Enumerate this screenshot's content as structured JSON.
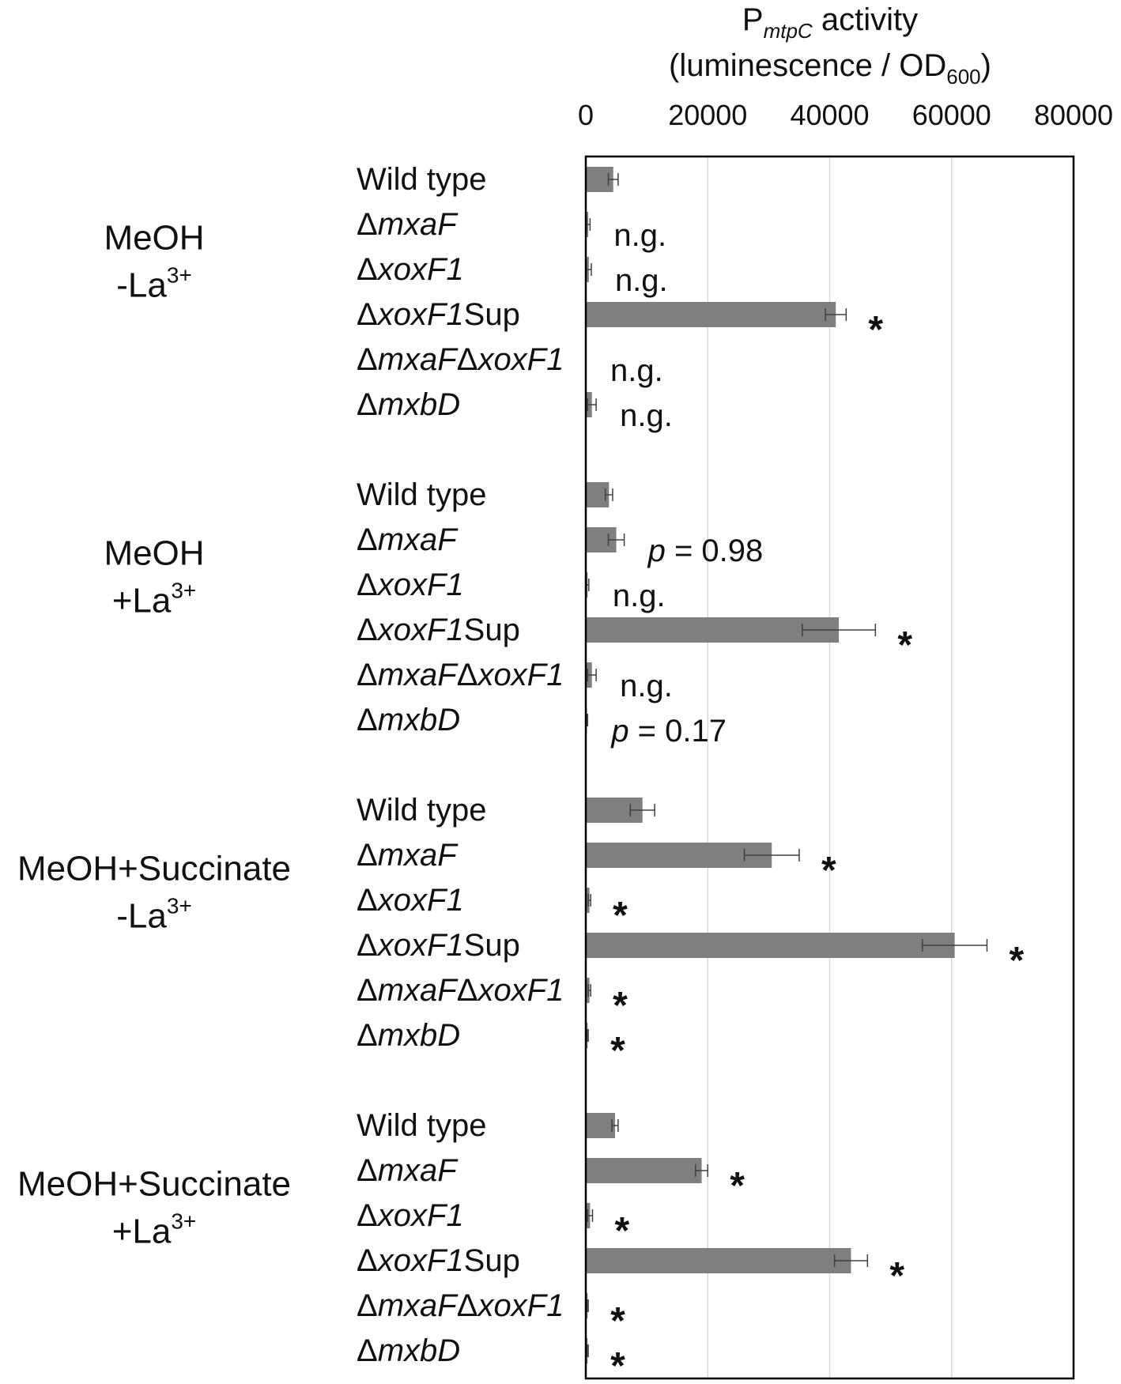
{
  "chart_data": {
    "type": "bar",
    "orientation": "horizontal",
    "title": "P_mtpC activity (luminescence / OD600)",
    "title_parts": {
      "p": "P",
      "p_sub": "mtpC",
      "activity": " activity",
      "line2_open": "(luminescence / OD",
      "od_sub": "600",
      "line2_close": ")"
    },
    "xlim": [
      0,
      80000
    ],
    "xticks": [
      "0",
      "20000",
      "40000",
      "60000",
      "80000"
    ],
    "grid": true,
    "x_axis_position": "top",
    "groups": [
      {
        "name": "MeOH -La3+",
        "label_line1": "MeOH",
        "label_line2_prefix": "-La",
        "label_line2_sup": "3+",
        "bars": [
          {
            "strain": "Wild type",
            "value": 4500,
            "error": 800,
            "annotation": ""
          },
          {
            "strain": "ΔmxaF",
            "value": 400,
            "error": 300,
            "annotation": "n.g."
          },
          {
            "strain": "ΔxoxF1",
            "value": 500,
            "error": 400,
            "annotation": "n.g."
          },
          {
            "strain": "ΔxoxF1Sup",
            "value": 41000,
            "error": 1700,
            "annotation": "*"
          },
          {
            "strain": "ΔmxaFΔxoxF1",
            "value": 0,
            "error": 0,
            "annotation": "n.g."
          },
          {
            "strain": "ΔmxbD",
            "value": 1000,
            "error": 700,
            "annotation": "n.g."
          }
        ]
      },
      {
        "name": "MeOH +La3+",
        "label_line1": "MeOH",
        "label_line2_prefix": "+La",
        "label_line2_sup": "3+",
        "bars": [
          {
            "strain": "Wild type",
            "value": 3800,
            "error": 600,
            "annotation": ""
          },
          {
            "strain": "ΔmxaF",
            "value": 5000,
            "error": 1300,
            "annotation": "p = 0.98"
          },
          {
            "strain": "ΔxoxF1",
            "value": 300,
            "error": 200,
            "annotation": "n.g."
          },
          {
            "strain": "ΔxoxF1Sup",
            "value": 41500,
            "error": 6000,
            "annotation": "*"
          },
          {
            "strain": "ΔmxaFΔxoxF1",
            "value": 1000,
            "error": 700,
            "annotation": "n.g."
          },
          {
            "strain": "ΔmxbD",
            "value": 200,
            "error": 100,
            "annotation": "p = 0.17"
          }
        ]
      },
      {
        "name": "MeOH+Succinate -La3+",
        "label_line1": "MeOH+Succinate",
        "label_line2_prefix": "-La",
        "label_line2_sup": "3+",
        "bars": [
          {
            "strain": "Wild type",
            "value": 9300,
            "error": 2000,
            "annotation": ""
          },
          {
            "strain": "ΔmxaF",
            "value": 30500,
            "error": 4500,
            "annotation": "*"
          },
          {
            "strain": "ΔxoxF1",
            "value": 600,
            "error": 200,
            "annotation": "*"
          },
          {
            "strain": "ΔxoxF1Sup",
            "value": 60500,
            "error": 5300,
            "annotation": "*"
          },
          {
            "strain": "ΔmxaFΔxoxF1",
            "value": 600,
            "error": 200,
            "annotation": "*"
          },
          {
            "strain": "ΔmxbD",
            "value": 300,
            "error": 100,
            "annotation": "*"
          }
        ]
      },
      {
        "name": "MeOH+Succinate +La3+",
        "label_line1": "MeOH+Succinate",
        "label_line2_prefix": "+La",
        "label_line2_sup": "3+",
        "bars": [
          {
            "strain": "Wild type",
            "value": 4800,
            "error": 500,
            "annotation": ""
          },
          {
            "strain": "ΔmxaF",
            "value": 19000,
            "error": 1000,
            "annotation": "*"
          },
          {
            "strain": "ΔxoxF1",
            "value": 700,
            "error": 400,
            "annotation": "*"
          },
          {
            "strain": "ΔxoxF1Sup",
            "value": 43500,
            "error": 2700,
            "annotation": "*"
          },
          {
            "strain": "ΔmxaFΔxoxF1",
            "value": 300,
            "error": 100,
            "annotation": "*"
          },
          {
            "strain": "ΔmxbD",
            "value": 300,
            "error": 100,
            "annotation": "*"
          }
        ]
      }
    ],
    "colors": {
      "bar": "#7f7f7f",
      "error": "#404040",
      "grid": "#d9d9d9",
      "frame": "#000000"
    }
  }
}
